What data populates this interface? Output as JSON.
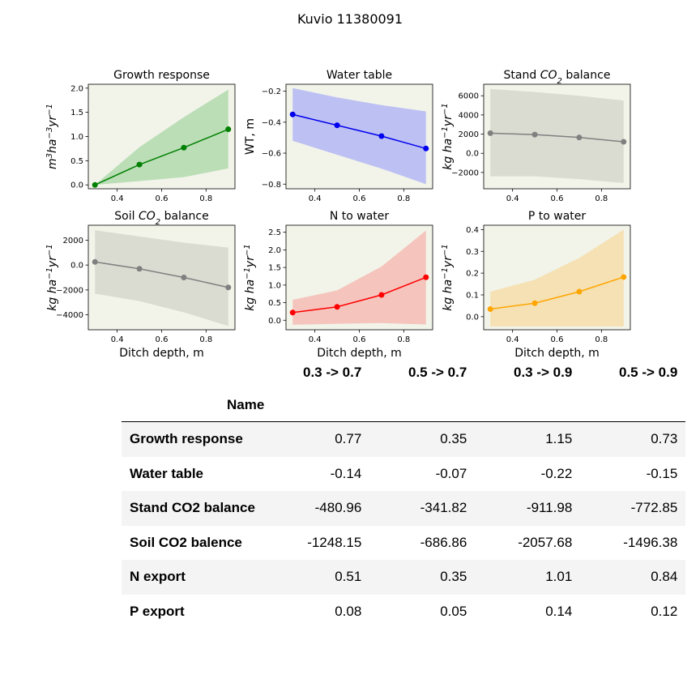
{
  "title": "Kuvio 11380091",
  "chart_data": [
    {
      "type": "line",
      "title": "Growth response",
      "ylabel": "m^3ha^-3yr^-1",
      "xlabel": "",
      "x": [
        0.3,
        0.5,
        0.7,
        0.9
      ],
      "series": [
        {
          "values": [
            0.0,
            0.42,
            0.77,
            1.15
          ],
          "lower": [
            0.0,
            0.08,
            0.16,
            0.34
          ],
          "upper": [
            0.0,
            0.78,
            1.4,
            1.97
          ]
        }
      ],
      "xlim": [
        0.27,
        0.93
      ],
      "ylim": [
        -0.08,
        2.08
      ],
      "xticks": [
        0.4,
        0.6,
        0.8
      ],
      "yticks": [
        0.0,
        0.5,
        1.0,
        1.5,
        2.0
      ],
      "color": "#008000",
      "band_color": "#b7dcb4"
    },
    {
      "type": "line",
      "title": "Water table",
      "ylabel": "WT, m",
      "xlabel": "",
      "x": [
        0.3,
        0.5,
        0.7,
        0.9
      ],
      "series": [
        {
          "values": [
            -0.35,
            -0.42,
            -0.49,
            -0.57
          ],
          "lower": [
            -0.52,
            -0.61,
            -0.7,
            -0.8
          ],
          "upper": [
            -0.18,
            -0.24,
            -0.29,
            -0.33
          ]
        }
      ],
      "xlim": [
        0.27,
        0.93
      ],
      "ylim": [
        -0.83,
        -0.155
      ],
      "xticks": [
        0.4,
        0.6,
        0.8
      ],
      "yticks": [
        -0.8,
        -0.6,
        -0.4,
        -0.2
      ],
      "color": "#0000ee",
      "band_color": "#b9bdf2"
    },
    {
      "type": "line",
      "title": "Stand CO2 balance",
      "ylabel": "kg ha^-1yr^-1",
      "xlabel": "",
      "x": [
        0.3,
        0.5,
        0.7,
        0.9
      ],
      "series": [
        {
          "values": [
            2100,
            1950,
            1650,
            1200
          ],
          "lower": [
            -2400,
            -2400,
            -2700,
            -3100
          ],
          "upper": [
            6700,
            6400,
            6000,
            5500
          ]
        }
      ],
      "xlim": [
        0.27,
        0.93
      ],
      "ylim": [
        -3700,
        7200
      ],
      "xticks": [
        0.4,
        0.6,
        0.8
      ],
      "yticks": [
        -2000,
        0,
        2000,
        4000,
        6000
      ],
      "color": "#808080",
      "band_color": "#d8dad0"
    },
    {
      "type": "line",
      "title": "Soil CO2 balance",
      "ylabel": "kg ha^-1yr^-1",
      "xlabel": "Ditch depth, m",
      "x": [
        0.3,
        0.5,
        0.7,
        0.9
      ],
      "series": [
        {
          "values": [
            250,
            -300,
            -1000,
            -1800
          ],
          "lower": [
            -2300,
            -2900,
            -3800,
            -4900
          ],
          "upper": [
            2800,
            2300,
            1800,
            1400
          ]
        }
      ],
      "xlim": [
        0.27,
        0.93
      ],
      "ylim": [
        -5200,
        3200
      ],
      "xticks": [
        0.4,
        0.6,
        0.8
      ],
      "yticks": [
        -4000,
        -2000,
        0,
        2000
      ],
      "color": "#808080",
      "band_color": "#d8dad0"
    },
    {
      "type": "line",
      "title": "N to water",
      "ylabel": "kg ha^-1yr^-1",
      "xlabel": "Ditch depth, m",
      "x": [
        0.3,
        0.5,
        0.7,
        0.9
      ],
      "series": [
        {
          "values": [
            0.22,
            0.38,
            0.72,
            1.22
          ],
          "lower": [
            -0.13,
            -0.1,
            -0.08,
            -0.12
          ],
          "upper": [
            0.58,
            0.85,
            1.53,
            2.55
          ]
        }
      ],
      "xlim": [
        0.27,
        0.93
      ],
      "ylim": [
        -0.27,
        2.7
      ],
      "xticks": [
        0.4,
        0.6,
        0.8
      ],
      "yticks": [
        0.0,
        0.5,
        1.0,
        1.5,
        2.0,
        2.5
      ],
      "color": "#ff0000",
      "band_color": "#f4c2bb"
    },
    {
      "type": "line",
      "title": "P to water",
      "ylabel": "kg ha^-1yr^-1",
      "xlabel": "Ditch depth, m",
      "x": [
        0.3,
        0.5,
        0.7,
        0.9
      ],
      "series": [
        {
          "values": [
            0.035,
            0.062,
            0.115,
            0.182
          ],
          "lower": [
            -0.045,
            -0.045,
            -0.045,
            -0.045
          ],
          "upper": [
            0.115,
            0.17,
            0.27,
            0.4
          ]
        }
      ],
      "xlim": [
        0.27,
        0.93
      ],
      "ylim": [
        -0.06,
        0.42
      ],
      "xticks": [
        0.4,
        0.6,
        0.8
      ],
      "yticks": [
        0.0,
        0.1,
        0.2,
        0.3,
        0.4
      ],
      "color": "#ffa500",
      "band_color": "#f4dfb0"
    }
  ],
  "table": {
    "index_name": "Name",
    "columns": [
      "0.3 -> 0.7",
      "0.5 -> 0.7",
      "0.3 -> 0.9",
      "0.5 -> 0.9"
    ],
    "rows": [
      {
        "name": "Growth response",
        "values": [
          "0.77",
          "0.35",
          "1.15",
          "0.73"
        ]
      },
      {
        "name": "Water table",
        "values": [
          "-0.14",
          "-0.07",
          "-0.22",
          "-0.15"
        ]
      },
      {
        "name": "Stand CO2 balance",
        "values": [
          "-480.96",
          "-341.82",
          "-911.98",
          "-772.85"
        ]
      },
      {
        "name": "Soil CO2 balence",
        "values": [
          "-1248.15",
          "-686.86",
          "-2057.68",
          "-1496.38"
        ]
      },
      {
        "name": "N export",
        "values": [
          "0.51",
          "0.35",
          "1.01",
          "0.84"
        ]
      },
      {
        "name": "P export",
        "values": [
          "0.08",
          "0.05",
          "0.14",
          "0.12"
        ]
      }
    ]
  }
}
